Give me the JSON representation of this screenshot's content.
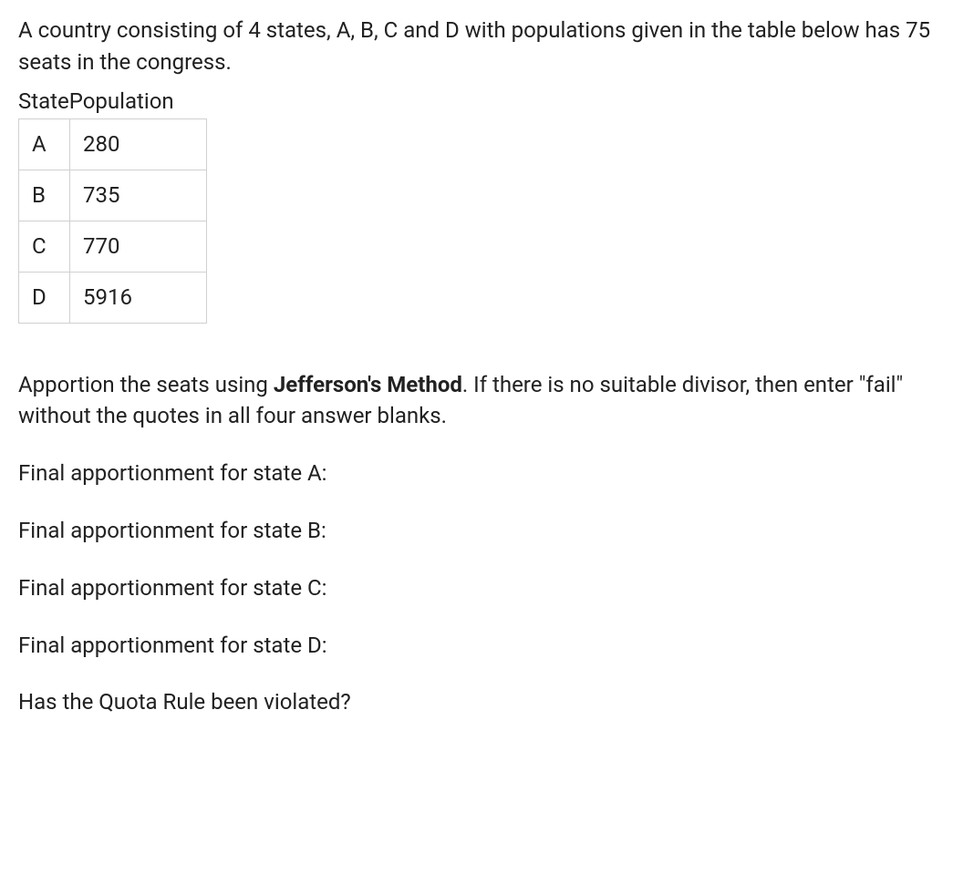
{
  "intro": "A country consisting of 4 states, A, B, C and D with populations given in the table below has 75 seats in the congress.",
  "table": {
    "header_state": "State",
    "header_population": "Population",
    "rows": [
      {
        "state": "A",
        "population": "280"
      },
      {
        "state": "B",
        "population": "735"
      },
      {
        "state": "C",
        "population": "770"
      },
      {
        "state": "D",
        "population": "5916"
      }
    ]
  },
  "instruction": {
    "prefix": "Apportion the seats using ",
    "bold": "Jefferson's Method",
    "suffix": ". If there is no suitable divisor, then enter \"fail\" without the quotes in all four answer blanks."
  },
  "questions": {
    "q_a": "Final apportionment for state A:",
    "q_b": "Final apportionment for state B:",
    "q_c": "Final apportionment for state C:",
    "q_d": "Final apportionment for state D:",
    "q_quota": "Has the Quota Rule been violated?"
  }
}
